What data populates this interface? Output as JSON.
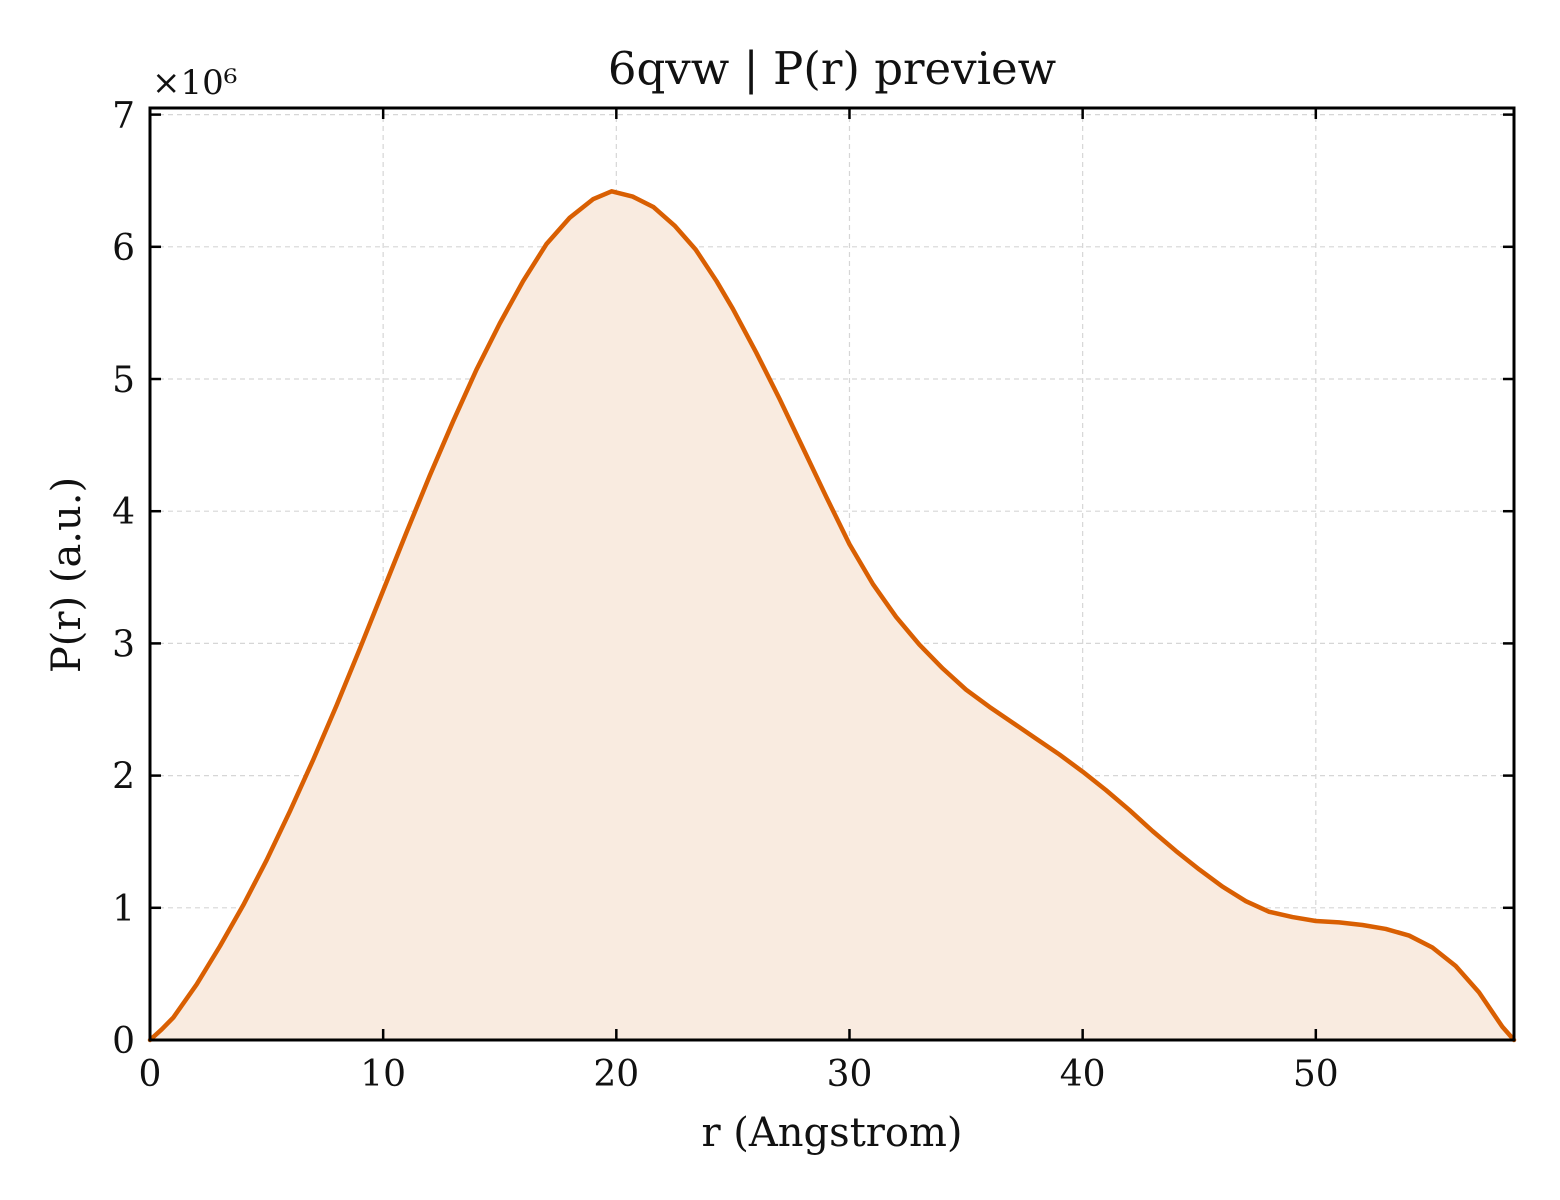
{
  "chart_data": {
    "type": "area",
    "title": "6qvw | P(r) preview",
    "xlabel": "r (Angstrom)",
    "ylabel": "P(r) (a.u.)",
    "y_offset_label": "×10⁶",
    "xlim": [
      0,
      58.5
    ],
    "ylim": [
      0,
      7.05
    ],
    "xticks": [
      0,
      10,
      20,
      30,
      40,
      50
    ],
    "yticks": [
      0,
      1,
      2,
      3,
      4,
      5,
      6,
      7
    ],
    "grid": true,
    "line_color": "#d95f02",
    "fill_color": "#f9ebe0",
    "series": [
      {
        "x": [
          0,
          0.5,
          1,
          2,
          3,
          4,
          5,
          6,
          7,
          8,
          9,
          10,
          11,
          12,
          13,
          14,
          15,
          16,
          17,
          18,
          19,
          19.8,
          20.7,
          21.6,
          22.5,
          23.4,
          24.3,
          25,
          26,
          27,
          28,
          29,
          30,
          31,
          32,
          33,
          34,
          35,
          36,
          37,
          38,
          39,
          40,
          41,
          42,
          43,
          44,
          45,
          46,
          47,
          48,
          49,
          50,
          51,
          52,
          53,
          54,
          55,
          56,
          57,
          58,
          58.5
        ],
        "y": [
          0,
          0.08,
          0.17,
          0.42,
          0.71,
          1.02,
          1.36,
          1.73,
          2.12,
          2.53,
          2.96,
          3.4,
          3.84,
          4.27,
          4.68,
          5.07,
          5.42,
          5.74,
          6.02,
          6.22,
          6.36,
          6.42,
          6.38,
          6.3,
          6.16,
          5.98,
          5.74,
          5.53,
          5.2,
          4.85,
          4.48,
          4.11,
          3.75,
          3.45,
          3.2,
          2.99,
          2.81,
          2.65,
          2.52,
          2.4,
          2.28,
          2.16,
          2.03,
          1.89,
          1.74,
          1.58,
          1.43,
          1.29,
          1.16,
          1.05,
          0.97,
          0.93,
          0.9,
          0.89,
          0.87,
          0.84,
          0.79,
          0.7,
          0.56,
          0.36,
          0.1,
          0
        ]
      }
    ]
  }
}
